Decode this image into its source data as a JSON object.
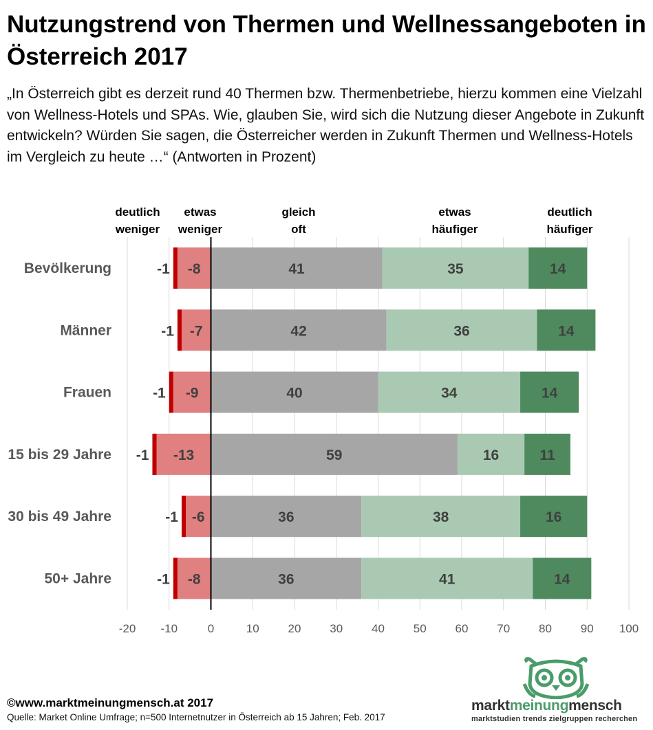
{
  "title": "Nutzungstrend von Thermen und Wellnessangeboten in Österreich 2017",
  "subtitle": "„In Österreich gibt es derzeit rund 40 Thermen bzw. Thermenbetriebe, hierzu kommen eine Vielzahl von Wellness-Hotels und SPAs. Wie, glauben Sie, wird sich die Nutzung dieser Angebote in Zukunft entwickeln? Würden Sie sagen, die Österreicher werden in Zukunft Thermen und Wellness-Hotels im Vergleich zu heute …“ (Antworten in Prozent)",
  "footer": {
    "copyright": "©www.marktmeinungmensch.at 2017",
    "source": "Quelle: Market Online Umfrage; n=500 Internetnutzer in Österreich ab 15 Jahren; Feb. 2017"
  },
  "logo": {
    "word_a": "markt",
    "word_b": "meinung",
    "word_c": "mensch",
    "tagline": "marktstudien trends zielgruppen recherchen"
  },
  "chart_data": {
    "type": "bar",
    "orientation": "horizontal",
    "stacked": true,
    "diverging": true,
    "categories": [
      "Bevölkerung",
      "Männer",
      "Frauen",
      "15 bis 29 Jahre",
      "30 bis 49 Jahre",
      "50+ Jahre"
    ],
    "series": [
      {
        "name": [
          "deutlich",
          "weniger"
        ],
        "color": "#c00000",
        "direction": "negative",
        "values": [
          -1,
          -1,
          -1,
          -1,
          -1,
          -1
        ]
      },
      {
        "name": [
          "etwas",
          "weniger"
        ],
        "color": "#e08080",
        "direction": "negative",
        "values": [
          -8,
          -7,
          -9,
          -13,
          -6,
          -8
        ]
      },
      {
        "name": [
          "gleich",
          "oft"
        ],
        "color": "#a6a6a6",
        "direction": "positive",
        "values": [
          41,
          42,
          40,
          59,
          36,
          36
        ]
      },
      {
        "name": [
          "etwas",
          "häufiger"
        ],
        "color": "#a9c9b2",
        "direction": "positive",
        "values": [
          35,
          36,
          34,
          16,
          38,
          41
        ]
      },
      {
        "name": [
          "deutlich",
          "häufiger"
        ],
        "color": "#4e8a5e",
        "direction": "positive",
        "values": [
          14,
          14,
          14,
          11,
          16,
          14
        ]
      }
    ],
    "xlim": [
      -20,
      100
    ],
    "xticks": [
      -20,
      -10,
      0,
      10,
      20,
      30,
      40,
      50,
      60,
      70,
      80,
      90,
      100
    ],
    "grid": true,
    "legend": "top"
  }
}
